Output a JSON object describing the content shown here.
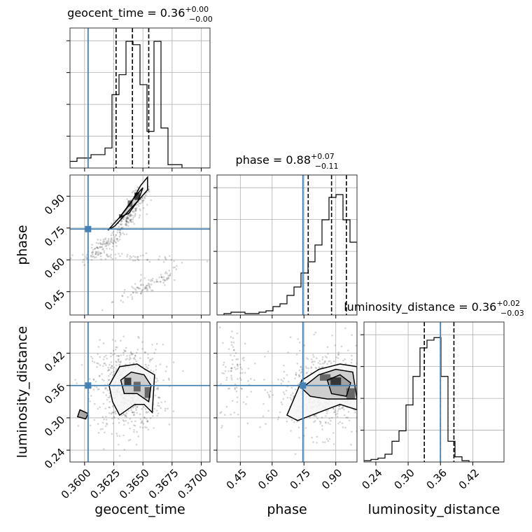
{
  "chart_data": {
    "type": "corner",
    "truth": {
      "geocent_time": 0.3603,
      "phase": 0.745,
      "luminosity_distance": 0.36,
      "color": "#4682b4"
    },
    "parameters": [
      {
        "key": "geocent_time",
        "label": "geocent_time",
        "range": [
          0.35875,
          0.37075
        ],
        "ticks": [
          "0.3600",
          "0.3625",
          "0.3650",
          "0.3675",
          "0.3700"
        ],
        "tick_values": [
          0.36,
          0.3625,
          0.365,
          0.3675,
          0.37
        ]
      },
      {
        "key": "phase",
        "label": "phase",
        "range": [
          0.34,
          1.0
        ],
        "ticks": [
          "0.45",
          "0.60",
          "0.75",
          "0.90"
        ],
        "tick_values": [
          0.45,
          0.6,
          0.75,
          0.9
        ]
      },
      {
        "key": "luminosity_distance",
        "label": "luminosity_distance",
        "range": [
          0.218,
          0.478
        ],
        "ticks": [
          "0.24",
          "0.30",
          "0.36",
          "0.42"
        ],
        "tick_values": [
          0.24,
          0.3,
          0.36,
          0.42
        ]
      }
    ],
    "titles": [
      {
        "name": "geocent_time",
        "base": "geocent_time = 0.36",
        "plus": "+0.00",
        "minus": "−0.00"
      },
      {
        "name": "phase",
        "base": "phase = 0.88",
        "plus": "+0.07",
        "minus": "−0.11"
      },
      {
        "name": "luminosity_distance",
        "base": "luminosity_distance = 0.36",
        "plus": "+0.02",
        "minus": "−0.03"
      }
    ],
    "histograms": [
      {
        "param": "geocent_time",
        "edges_start": 0.35875,
        "bin_width": 0.0006,
        "counts": [
          2,
          3,
          3,
          4,
          4,
          6,
          22,
          28,
          38,
          37,
          25,
          11,
          38,
          12,
          1,
          1,
          0,
          0,
          0,
          0
        ],
        "ymax": 42,
        "quantiles": [
          0.3627,
          0.3641,
          0.3655
        ]
      },
      {
        "param": "phase",
        "edges_start": 0.34,
        "bin_width": 0.033,
        "counts": [
          0,
          0.5,
          1,
          1,
          0.5,
          0.5,
          1,
          1.5,
          3,
          4,
          7,
          10,
          15,
          19,
          25,
          34,
          42,
          43,
          34,
          26
        ],
        "ymax": 50,
        "quantiles": [
          0.77,
          0.88,
          0.95
        ]
      },
      {
        "param": "luminosity_distance",
        "edges_start": 0.218,
        "bin_width": 0.013,
        "counts": [
          0.5,
          1,
          1.5,
          3,
          8,
          12,
          22,
          33,
          44,
          47,
          48,
          33,
          8,
          2,
          0.5,
          0,
          0,
          0,
          0,
          0
        ],
        "ymax": 54,
        "quantiles": [
          0.33,
          0.36,
          0.385
        ]
      }
    ],
    "pair_samples": [
      {
        "x": "geocent_time",
        "y": "phase",
        "clusters": [
          {
            "cx": 0.3617,
            "cy": 0.665,
            "sx": 0.0009,
            "sy": 0.02,
            "n": 120,
            "slope": 35
          },
          {
            "cx": 0.3637,
            "cy": 0.8,
            "sx": 0.0006,
            "sy": 0.025,
            "n": 120,
            "slope": 40
          },
          {
            "cx": 0.3648,
            "cy": 0.91,
            "sx": 0.0004,
            "sy": 0.02,
            "n": 90,
            "slope": 25
          },
          {
            "cx": 0.3655,
            "cy": 0.48,
            "sx": 0.0015,
            "sy": 0.02,
            "n": 100,
            "slope": 25
          },
          {
            "cx": 0.3645,
            "cy": 0.61,
            "sx": 0.0025,
            "sy": 0.01,
            "n": 50,
            "slope": -4
          }
        ],
        "density_peaks": [
          {
            "x": 0.3645,
            "y": 0.9,
            "w": 0.00045,
            "h": 0.035
          },
          {
            "x": 0.3639,
            "y": 0.865,
            "w": 0.0004,
            "h": 0.03
          },
          {
            "x": 0.3631,
            "y": 0.805,
            "w": 0.0003,
            "h": 0.02
          }
        ],
        "contours": [
          {
            "x": [
              0.362,
              0.363,
              0.364,
              0.3648,
              0.3654,
              0.3654,
              0.3646,
              0.3636,
              0.3626,
              0.362
            ],
            "y": [
              0.74,
              0.8,
              0.87,
              0.95,
              0.99,
              0.93,
              0.88,
              0.82,
              0.76,
              0.74
            ]
          },
          {
            "x": [
              0.363,
              0.3638,
              0.3645,
              0.365,
              0.3646,
              0.3638,
              0.363
            ],
            "y": [
              0.8,
              0.86,
              0.91,
              0.94,
              0.88,
              0.82,
              0.8
            ]
          }
        ]
      },
      {
        "x": "geocent_time",
        "y": "luminosity_distance",
        "clusters": [
          {
            "cx": 0.3637,
            "cy": 0.355,
            "sx": 0.0015,
            "sy": 0.04,
            "n": 650,
            "slope": 0
          }
        ],
        "density_peaks": [
          {
            "x": 0.3637,
            "y": 0.367,
            "w": 0.0006,
            "h": 0.015
          },
          {
            "x": 0.3645,
            "y": 0.358,
            "w": 0.0006,
            "h": 0.018
          },
          {
            "x": 0.3654,
            "y": 0.347,
            "w": 0.0005,
            "h": 0.02
          }
        ],
        "contours": [
          {
            "x": [
              0.3621,
              0.363,
              0.3645,
              0.3652,
              0.366,
              0.3658,
              0.3651,
              0.3643,
              0.363,
              0.3624,
              0.3621
            ],
            "y": [
              0.36,
              0.395,
              0.4,
              0.39,
              0.38,
              0.31,
              0.325,
              0.325,
              0.305,
              0.33,
              0.36
            ]
          },
          {
            "x": [
              0.3631,
              0.364,
              0.3651,
              0.3657,
              0.3655,
              0.3645,
              0.3634,
              0.3631
            ],
            "y": [
              0.37,
              0.385,
              0.38,
              0.36,
              0.33,
              0.345,
              0.345,
              0.37
            ]
          },
          {
            "x": [
              0.3596,
              0.3603,
              0.3601,
              0.3594,
              0.3596
            ],
            "y": [
              0.315,
              0.308,
              0.298,
              0.302,
              0.315
            ]
          }
        ]
      },
      {
        "x": "phase",
        "y": "luminosity_distance",
        "clusters": [
          {
            "cx": 0.85,
            "cy": 0.35,
            "sx": 0.11,
            "sy": 0.04,
            "n": 620,
            "slope": 0
          },
          {
            "cx": 0.43,
            "cy": 0.38,
            "sx": 0.04,
            "sy": 0.045,
            "n": 90,
            "slope": 0
          }
        ],
        "density_peaks": [
          {
            "x": 0.9,
            "y": 0.367,
            "w": 0.05,
            "h": 0.016
          },
          {
            "x": 0.85,
            "y": 0.375,
            "w": 0.05,
            "h": 0.012
          },
          {
            "x": 0.97,
            "y": 0.345,
            "w": 0.04,
            "h": 0.02
          }
        ],
        "contours": [
          {
            "x": [
              0.67,
              0.74,
              0.82,
              0.92,
              1.0,
              1.0,
              0.92,
              0.82,
              0.72,
              0.67
            ],
            "y": [
              0.305,
              0.37,
              0.39,
              0.4,
              0.395,
              0.315,
              0.325,
              0.31,
              0.295,
              0.305
            ]
          },
          {
            "x": [
              0.74,
              0.82,
              0.9,
              0.98,
              1.0,
              0.94,
              0.86,
              0.78,
              0.74
            ],
            "y": [
              0.355,
              0.38,
              0.39,
              0.385,
              0.335,
              0.335,
              0.335,
              0.34,
              0.355
            ]
          },
          {
            "x": [
              0.86,
              0.92,
              0.97,
              0.95,
              0.88,
              0.86
            ],
            "y": [
              0.37,
              0.38,
              0.365,
              0.34,
              0.345,
              0.37
            ]
          }
        ]
      }
    ]
  }
}
